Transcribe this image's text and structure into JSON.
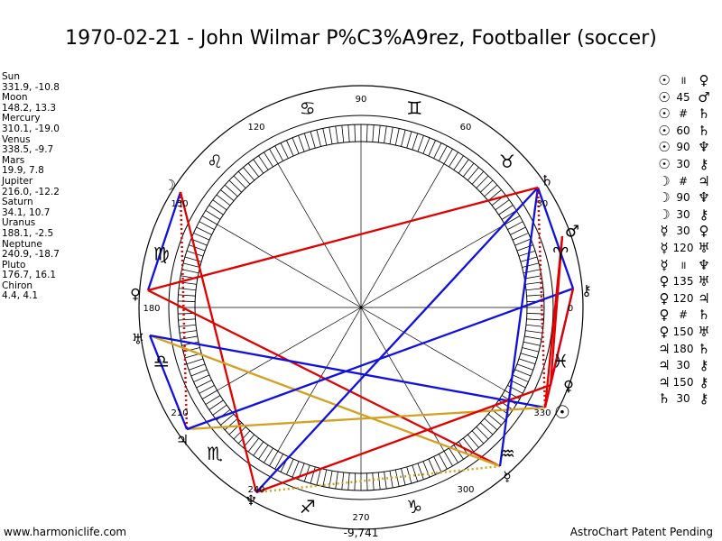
{
  "title": "1970-02-21 - John Wilmar P%C3%A9rez, Footballer (soccer)",
  "planets": [
    {
      "name": "Sun",
      "coords": "331.9, -10.8"
    },
    {
      "name": "Moon",
      "coords": "148.2, 13.3"
    },
    {
      "name": "Mercury",
      "coords": "310.1, -19.0"
    },
    {
      "name": "Venus",
      "coords": "338.5, -9.7"
    },
    {
      "name": "Mars",
      "coords": "19.9, 7.8"
    },
    {
      "name": "Jupiter",
      "coords": "216.0, -12.2"
    },
    {
      "name": "Saturn",
      "coords": "34.1, 10.7"
    },
    {
      "name": "Uranus",
      "coords": "188.1, -2.5"
    },
    {
      "name": "Neptune",
      "coords": "240.9, -18.7"
    },
    {
      "name": "Pluto",
      "coords": "176.7, 16.1"
    },
    {
      "name": "Chiron",
      "coords": "4.4, 4.1"
    }
  ],
  "aspects": [
    {
      "p1": "☉",
      "a": "॥",
      "p2": "♀"
    },
    {
      "p1": "☉",
      "a": "45",
      "p2": "♂"
    },
    {
      "p1": "☉",
      "a": "#",
      "p2": "♄"
    },
    {
      "p1": "☉",
      "a": "60",
      "p2": "♄"
    },
    {
      "p1": "☉",
      "a": "90",
      "p2": "♆"
    },
    {
      "p1": "☉",
      "a": "30",
      "p2": "⚷"
    },
    {
      "p1": "☽",
      "a": "#",
      "p2": "♃"
    },
    {
      "p1": "☽",
      "a": "90",
      "p2": "♆"
    },
    {
      "p1": "☽",
      "a": "30",
      "p2": "⚷"
    },
    {
      "p1": "☿",
      "a": "30",
      "p2": "♀"
    },
    {
      "p1": "☿",
      "a": "120",
      "p2": "♅"
    },
    {
      "p1": "☿",
      "a": "॥",
      "p2": "♆"
    },
    {
      "p1": "♀",
      "a": "135",
      "p2": "♅"
    },
    {
      "p1": "♀",
      "a": "120",
      "p2": "♃"
    },
    {
      "p1": "♀",
      "a": "#",
      "p2": "♄"
    },
    {
      "p1": "♀",
      "a": "150",
      "p2": "♅"
    },
    {
      "p1": "♃",
      "a": "180",
      "p2": "♄"
    },
    {
      "p1": "♃",
      "a": "30",
      "p2": "⚷"
    },
    {
      "p1": "♃",
      "a": "150",
      "p2": "⚷"
    },
    {
      "p1": "♄",
      "a": "30",
      "p2": "⚷"
    }
  ],
  "degree_labels": [
    "90",
    "60",
    "30",
    "0",
    "330",
    "300",
    "270",
    "240",
    "210",
    "180",
    "150",
    "120"
  ],
  "zodiac": [
    "♈",
    "♉",
    "♊",
    "♋",
    "♌",
    "♍",
    "♎",
    "♏",
    "♐",
    "♑",
    "♒",
    "♓"
  ],
  "chart_glyphs": {
    "saturn": "♄",
    "mars": "♂",
    "chiron": "⚷",
    "venus": "♀",
    "sun": "☉",
    "mercury": "☿",
    "neptune": "♆",
    "jupiter": "♃",
    "uranus": "♅",
    "pluto": "♀",
    "moon": "☽"
  },
  "center_value": "-9,741",
  "footer": {
    "left": "www.harmoniclife.com",
    "right": "AstroChart Patent Pending"
  },
  "colors": {
    "red": "#e00000",
    "blue": "#1010e0",
    "gold": "#d4a020"
  }
}
